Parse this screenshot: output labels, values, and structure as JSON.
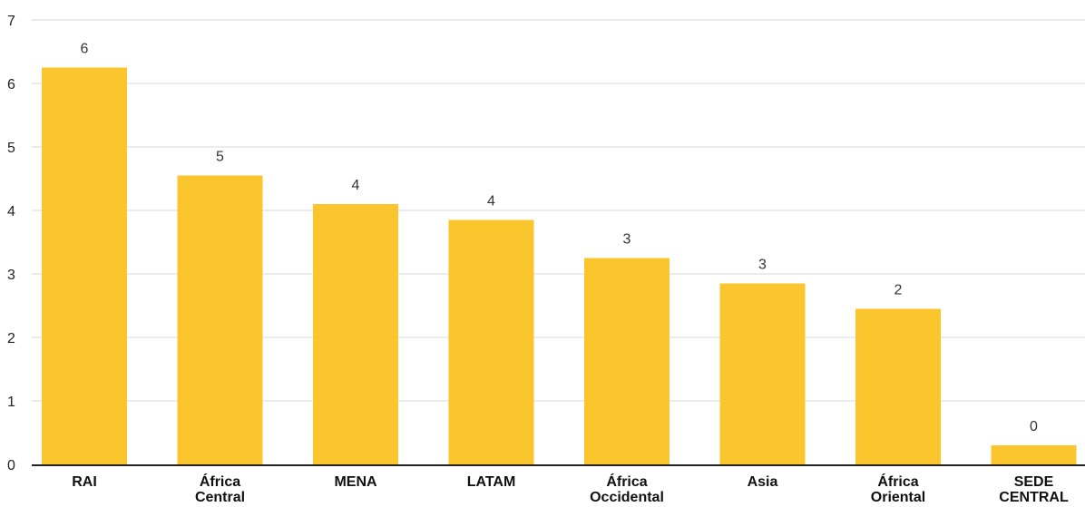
{
  "chart_data": {
    "type": "bar",
    "title": "",
    "xlabel": "",
    "ylabel": "",
    "ylim": [
      0,
      7
    ],
    "yticks": [
      0,
      1,
      2,
      3,
      4,
      5,
      6,
      7
    ],
    "grid": true,
    "categories": [
      [
        "RAI"
      ],
      [
        "África",
        "Central"
      ],
      [
        "MENA"
      ],
      [
        "LATAM"
      ],
      [
        "África",
        "Occidental"
      ],
      [
        "Asia"
      ],
      [
        "África",
        "Oriental"
      ],
      [
        "SEDE",
        "CENTRAL"
      ]
    ],
    "values": [
      6.25,
      4.55,
      4.1,
      3.85,
      3.25,
      2.85,
      2.45,
      0.3
    ],
    "data_labels": [
      "6",
      "5",
      "4",
      "4",
      "3",
      "3",
      "2",
      "0"
    ],
    "bar_color": "#FBC52D"
  }
}
